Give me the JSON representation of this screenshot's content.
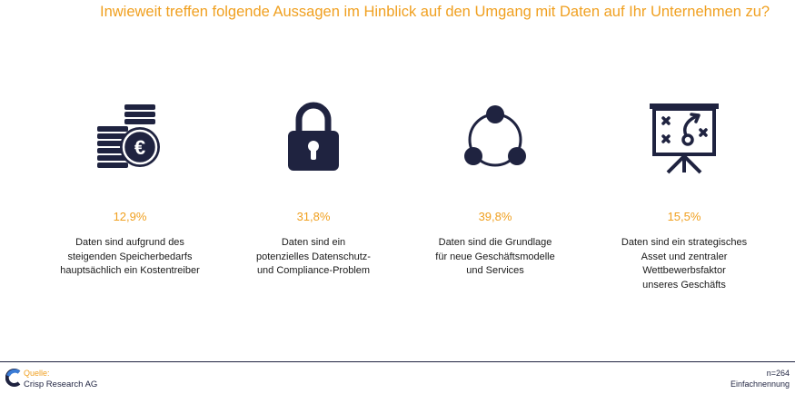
{
  "chart_data": {
    "type": "table",
    "title": "Inwieweit treffen folgende Aussagen im Hinblick auf den Umgang mit Daten auf Ihr Unternehmen zu?",
    "items": [
      {
        "icon": "euro-coins-icon",
        "value_label": "12,9%",
        "value": 12.9,
        "lines": [
          "Daten sind aufgrund des",
          "steigenden Speicherbedarfs",
          "hauptsächlich ein Kostentreiber"
        ]
      },
      {
        "icon": "padlock-icon",
        "value_label": "31,8%",
        "value": 31.8,
        "lines": [
          "Daten sind ein",
          "potenzielles Datenschutz-",
          "und Compliance-Problem"
        ]
      },
      {
        "icon": "cycle-network-icon",
        "value_label": "39,8%",
        "value": 39.8,
        "lines": [
          "Daten sind die Grundlage",
          "für neue Geschäftsmodelle",
          "und Services"
        ]
      },
      {
        "icon": "strategy-board-icon",
        "value_label": "15,5%",
        "value": 15.5,
        "lines": [
          "Daten sind ein strategisches",
          "Asset und zentraler",
          "Wettbewerbsfaktor",
          "unseres Geschäfts"
        ]
      }
    ]
  },
  "footer": {
    "source_label": "Quelle:",
    "source_name": "Crisp Research AG",
    "sample_size": "n=264",
    "answer_type": "Einfachnennung"
  },
  "colors": {
    "accent": "#f0a020",
    "icon": "#1f2340"
  }
}
